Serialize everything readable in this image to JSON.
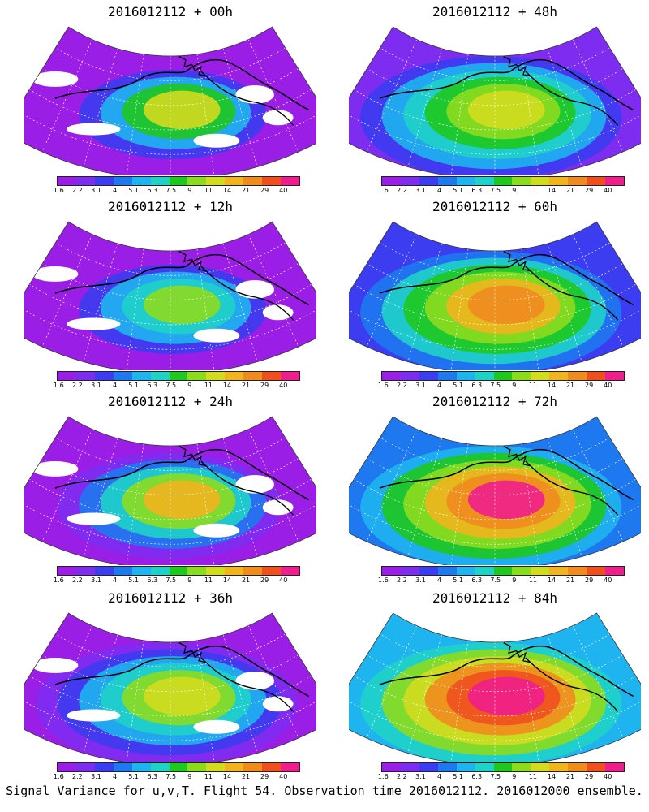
{
  "panels": [
    {
      "title": "2016012112 + 00h",
      "level": 0.1,
      "hotspot": 0.55
    },
    {
      "title": "2016012112 + 48h",
      "level": 0.55,
      "hotspot": 0.55
    },
    {
      "title": "2016012112 + 12h",
      "level": 0.2,
      "hotspot": 0.45
    },
    {
      "title": "2016012112 + 60h",
      "level": 0.62,
      "hotspot": 0.7
    },
    {
      "title": "2016012112 + 24h",
      "level": 0.3,
      "hotspot": 0.6
    },
    {
      "title": "2016012112 + 72h",
      "level": 0.7,
      "hotspot": 0.85
    },
    {
      "title": "2016012112 + 36h",
      "level": 0.4,
      "hotspot": 0.55
    },
    {
      "title": "2016012112 + 84h",
      "level": 0.78,
      "hotspot": 0.9
    }
  ],
  "colorbar": {
    "labels": [
      "1.6",
      "2.2",
      "3.1",
      "4",
      "5.1",
      "6.3",
      "7.5",
      "9",
      "11",
      "14",
      "21",
      "29",
      "40"
    ],
    "colors": [
      "#9a1ee6",
      "#7d2cf0",
      "#3c3cf0",
      "#1e78f0",
      "#1eb4f0",
      "#1ed2c8",
      "#1ec81e",
      "#8cdc1e",
      "#d2dc1e",
      "#f0b41e",
      "#f08c1e",
      "#f0501e",
      "#f01e8c"
    ]
  },
  "footer": "Signal Variance for u,v,T. Flight 54. Observation time 2016012112. 2016012000 ensemble."
}
